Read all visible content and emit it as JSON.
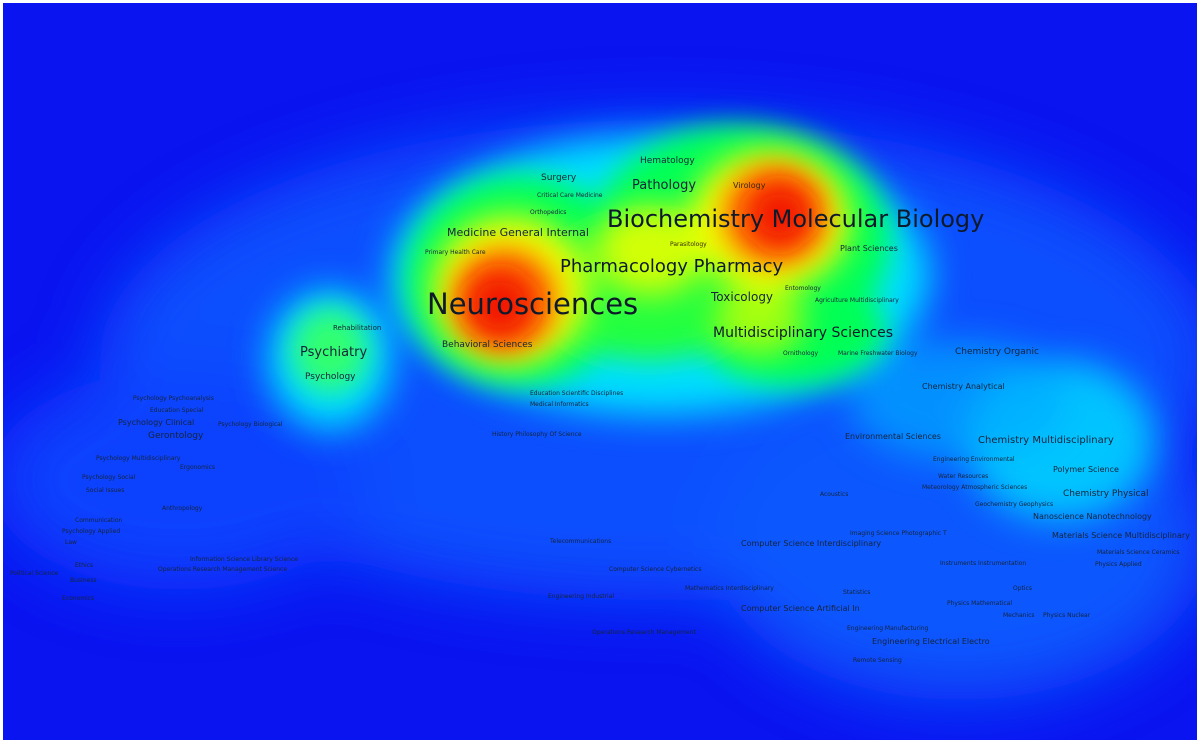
{
  "heat_peaks": [
    {
      "level": 1.0
    },
    {
      "level": 0.95
    },
    {
      "level": 0.55
    },
    {
      "level": 0.5
    },
    {
      "level": 0.35
    },
    {
      "level": 0.2
    }
  ],
  "colors": {
    "background": "#0a14f0",
    "low": "#0a52ff",
    "mid_low": "#00e0ff",
    "mid": "#00ff55",
    "mid_high": "#f2ff00",
    "high": "#ff6a00",
    "peak": "#f21500"
  },
  "labels": [
    {
      "text": "Biochemistry Molecular Biology"
    },
    {
      "text": "Neurosciences"
    },
    {
      "text": "Pharmacology Pharmacy"
    },
    {
      "text": "Multidisciplinary Sciences"
    },
    {
      "text": "Medicine General Internal"
    },
    {
      "text": "Pathology"
    },
    {
      "text": "Hematology"
    },
    {
      "text": "Virology"
    },
    {
      "text": "Surgery"
    },
    {
      "text": "Critical Care Medicine"
    },
    {
      "text": "Orthopedics"
    },
    {
      "text": "Primary Health Care"
    },
    {
      "text": "Parasitology"
    },
    {
      "text": "Plant Sciences"
    },
    {
      "text": "Toxicology"
    },
    {
      "text": "Entomology"
    },
    {
      "text": "Agriculture Multidisciplinary"
    },
    {
      "text": "Ornithology"
    },
    {
      "text": "Marine Freshwater Biology"
    },
    {
      "text": "Psychiatry"
    },
    {
      "text": "Psychology"
    },
    {
      "text": "Rehabilitation"
    },
    {
      "text": "Behavioral Sciences"
    },
    {
      "text": "Chemistry Organic"
    },
    {
      "text": "Chemistry Analytical"
    },
    {
      "text": "Education Scientific Disciplines"
    },
    {
      "text": "Medical Informatics"
    },
    {
      "text": "History Philosophy Of Science"
    },
    {
      "text": "Psychology Psychoanalysis"
    },
    {
      "text": "Education Special"
    },
    {
      "text": "Psychology Clinical"
    },
    {
      "text": "Psychology Biological"
    },
    {
      "text": "Gerontology"
    },
    {
      "text": "Psychology Multidisciplinary"
    },
    {
      "text": "Ergonomics"
    },
    {
      "text": "Psychology Social"
    },
    {
      "text": "Social Issues"
    },
    {
      "text": "Anthropology"
    },
    {
      "text": "Communication"
    },
    {
      "text": "Psychology Applied"
    },
    {
      "text": "Law"
    },
    {
      "text": "Political Science"
    },
    {
      "text": "Ethics"
    },
    {
      "text": "Business"
    },
    {
      "text": "Economics"
    },
    {
      "text": "Information Science Library Science"
    },
    {
      "text": "Operations Research Management Science"
    },
    {
      "text": "Environmental Sciences"
    },
    {
      "text": "Chemistry Multidisciplinary"
    },
    {
      "text": "Engineering Environmental"
    },
    {
      "text": "Water Resources"
    },
    {
      "text": "Meteorology Atmospheric Sciences"
    },
    {
      "text": "Polymer Science"
    },
    {
      "text": "Chemistry Physical"
    },
    {
      "text": "Geochemistry Geophysics"
    },
    {
      "text": "Nanoscience Nanotechnology"
    },
    {
      "text": "Materials Science Multidisciplinary"
    },
    {
      "text": "Materials Science Ceramics"
    },
    {
      "text": "Physics Applied"
    },
    {
      "text": "Acoustics"
    },
    {
      "text": "Imaging Science Photographic T"
    },
    {
      "text": "Computer Science Interdisciplinary"
    },
    {
      "text": "Telecommunications"
    },
    {
      "text": "Instruments Instrumentation"
    },
    {
      "text": "Computer Science Cybernetics"
    },
    {
      "text": "Mathematics Interdisciplinary"
    },
    {
      "text": "Statistics"
    },
    {
      "text": "Optics"
    },
    {
      "text": "Engineering Industrial"
    },
    {
      "text": "Computer Science Artificial In"
    },
    {
      "text": "Physics Mathematical"
    },
    {
      "text": "Mechanics"
    },
    {
      "text": "Physics Nuclear"
    },
    {
      "text": "Engineering Manufacturing"
    },
    {
      "text": "Engineering Electrical Electro"
    },
    {
      "text": "Operations Research Management"
    },
    {
      "text": "Remote Sensing"
    }
  ]
}
